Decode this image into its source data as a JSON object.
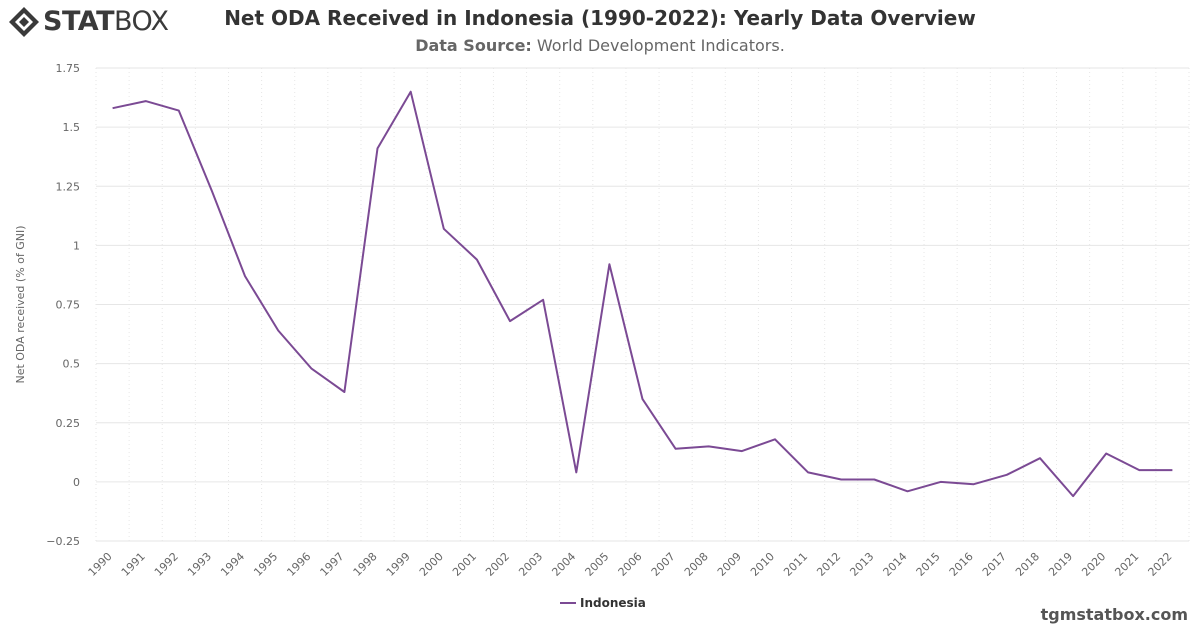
{
  "branding": {
    "logo_bold": "STAT",
    "logo_light": "BOX",
    "watermark": "tgmstatbox.com"
  },
  "header": {
    "title": "Net ODA Received in Indonesia (1990-2022): Yearly Data Overview",
    "subtitle_label": "Data Source:",
    "subtitle_value": "World Development Indicators."
  },
  "colors": {
    "series": "#7b4a94",
    "grid": "#e6e6e6",
    "axis_text": "#666666"
  },
  "chart_data": {
    "type": "line",
    "title": "Net ODA Received in Indonesia (1990-2022): Yearly Data Overview",
    "xlabel": "",
    "ylabel": "Net ODA received (% of GNI)",
    "ylim": [
      -0.25,
      1.75
    ],
    "yticks": [
      -0.25,
      0,
      0.25,
      0.5,
      0.75,
      1,
      1.25,
      1.5,
      1.75
    ],
    "ytick_labels": [
      "−0.25",
      "0",
      "0.25",
      "0.5",
      "0.75",
      "1",
      "1.25",
      "1.5",
      "1.75"
    ],
    "grid": true,
    "legend_position": "bottom-center",
    "x": [
      "1990",
      "1991",
      "1992",
      "1993",
      "1994",
      "1995",
      "1996",
      "1997",
      "1998",
      "1999",
      "2000",
      "2001",
      "2002",
      "2003",
      "2004",
      "2005",
      "2006",
      "2007",
      "2008",
      "2009",
      "2010",
      "2011",
      "2012",
      "2013",
      "2014",
      "2015",
      "2016",
      "2017",
      "2018",
      "2019",
      "2020",
      "2021",
      "2022"
    ],
    "series": [
      {
        "name": "Indonesia",
        "values": [
          1.58,
          1.61,
          1.57,
          1.23,
          0.87,
          0.64,
          0.48,
          0.38,
          1.41,
          1.65,
          1.07,
          0.94,
          0.68,
          0.77,
          0.04,
          0.92,
          0.35,
          0.14,
          0.15,
          0.13,
          0.18,
          0.04,
          0.01,
          0.01,
          -0.04,
          0.0,
          -0.01,
          0.03,
          0.1,
          -0.06,
          0.12,
          0.05,
          0.05
        ]
      }
    ]
  }
}
